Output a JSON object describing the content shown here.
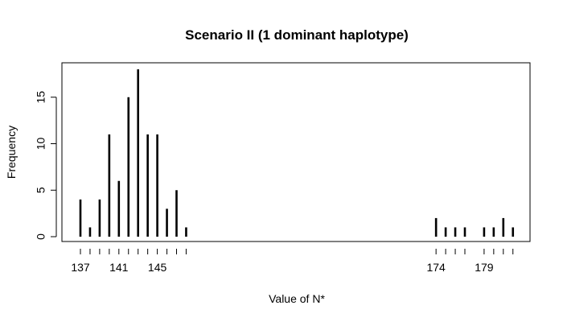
{
  "chart_data": {
    "type": "bar",
    "title": "Scenario II (1 dominant haplotype)",
    "xlabel": "Value of N*",
    "ylabel": "Frequency",
    "x": [
      137,
      138,
      139,
      140,
      141,
      142,
      143,
      144,
      145,
      146,
      147,
      148,
      174,
      175,
      176,
      177,
      179,
      180,
      181,
      182
    ],
    "values": [
      4,
      1,
      4,
      11,
      6,
      15,
      18,
      11,
      11,
      3,
      5,
      1,
      2,
      1,
      1,
      1,
      1,
      1,
      2,
      1
    ],
    "x_tick_labels": [
      "137",
      "141",
      "145",
      "174",
      "179"
    ],
    "y_ticks": [
      0,
      5,
      10,
      15
    ],
    "ylim": [
      0,
      18
    ],
    "grid": false,
    "legend": "none"
  }
}
